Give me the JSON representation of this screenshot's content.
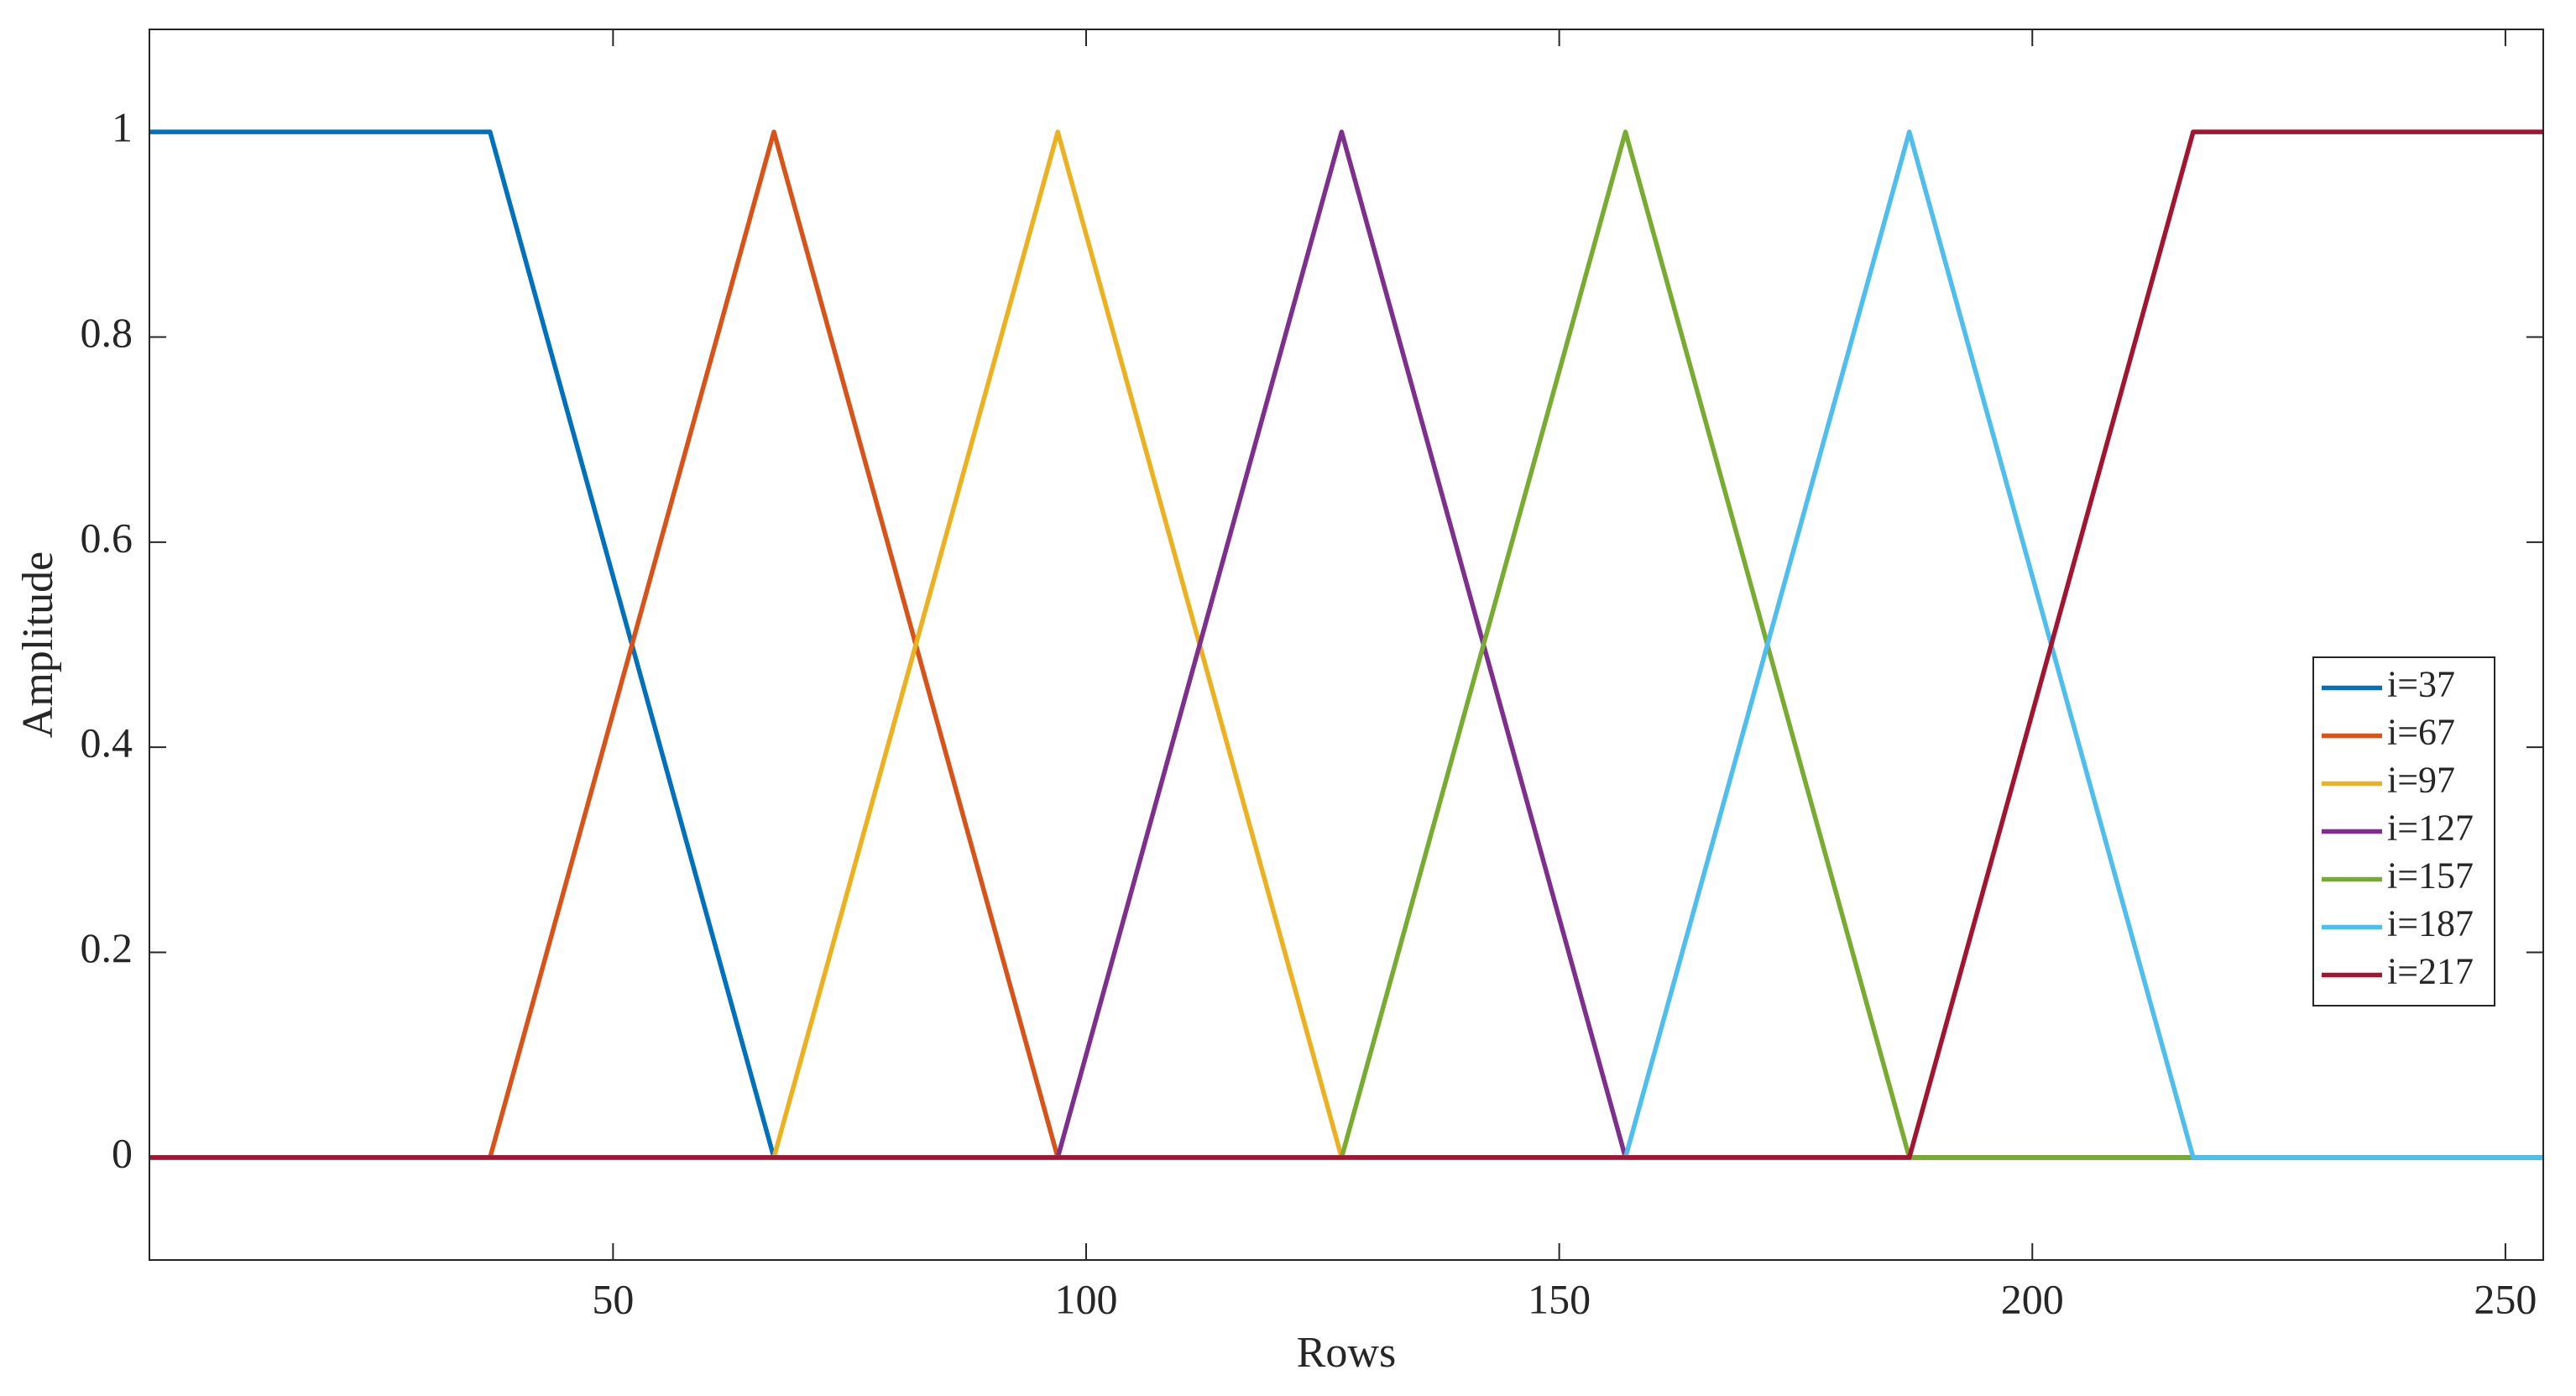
{
  "chart_data": {
    "type": "line",
    "x_label": "Rows",
    "y_label": "Amplitude",
    "xlim": [
      1,
      254
    ],
    "ylim": [
      -0.1,
      1.1
    ],
    "xticks": [
      50,
      100,
      150,
      200,
      250
    ],
    "yticks": [
      0,
      0.2,
      0.4,
      0.6,
      0.8,
      1
    ],
    "legend_position": "lower right",
    "series": [
      {
        "name": "i=37",
        "color": "#0072BD",
        "x": [
          1,
          37,
          67,
          254
        ],
        "values": [
          1,
          1,
          0,
          0
        ]
      },
      {
        "name": "i=67",
        "color": "#D95319",
        "x": [
          1,
          37,
          67,
          97,
          254
        ],
        "values": [
          0,
          0,
          1,
          0,
          0
        ]
      },
      {
        "name": "i=97",
        "color": "#EDB120",
        "x": [
          1,
          67,
          97,
          127,
          254
        ],
        "values": [
          0,
          0,
          1,
          0,
          0
        ]
      },
      {
        "name": "i=127",
        "color": "#7E2F8E",
        "x": [
          1,
          97,
          127,
          157,
          254
        ],
        "values": [
          0,
          0,
          1,
          0,
          0
        ]
      },
      {
        "name": "i=157",
        "color": "#77AC30",
        "x": [
          1,
          127,
          157,
          187,
          254
        ],
        "values": [
          0,
          0,
          1,
          0,
          0
        ]
      },
      {
        "name": "i=187",
        "color": "#4DBEEE",
        "x": [
          1,
          157,
          187,
          217,
          254
        ],
        "values": [
          0,
          0,
          1,
          0,
          0
        ]
      },
      {
        "name": "i=217",
        "color": "#A2142F",
        "x": [
          1,
          187,
          217,
          254
        ],
        "values": [
          0,
          0,
          1,
          1
        ]
      }
    ]
  }
}
